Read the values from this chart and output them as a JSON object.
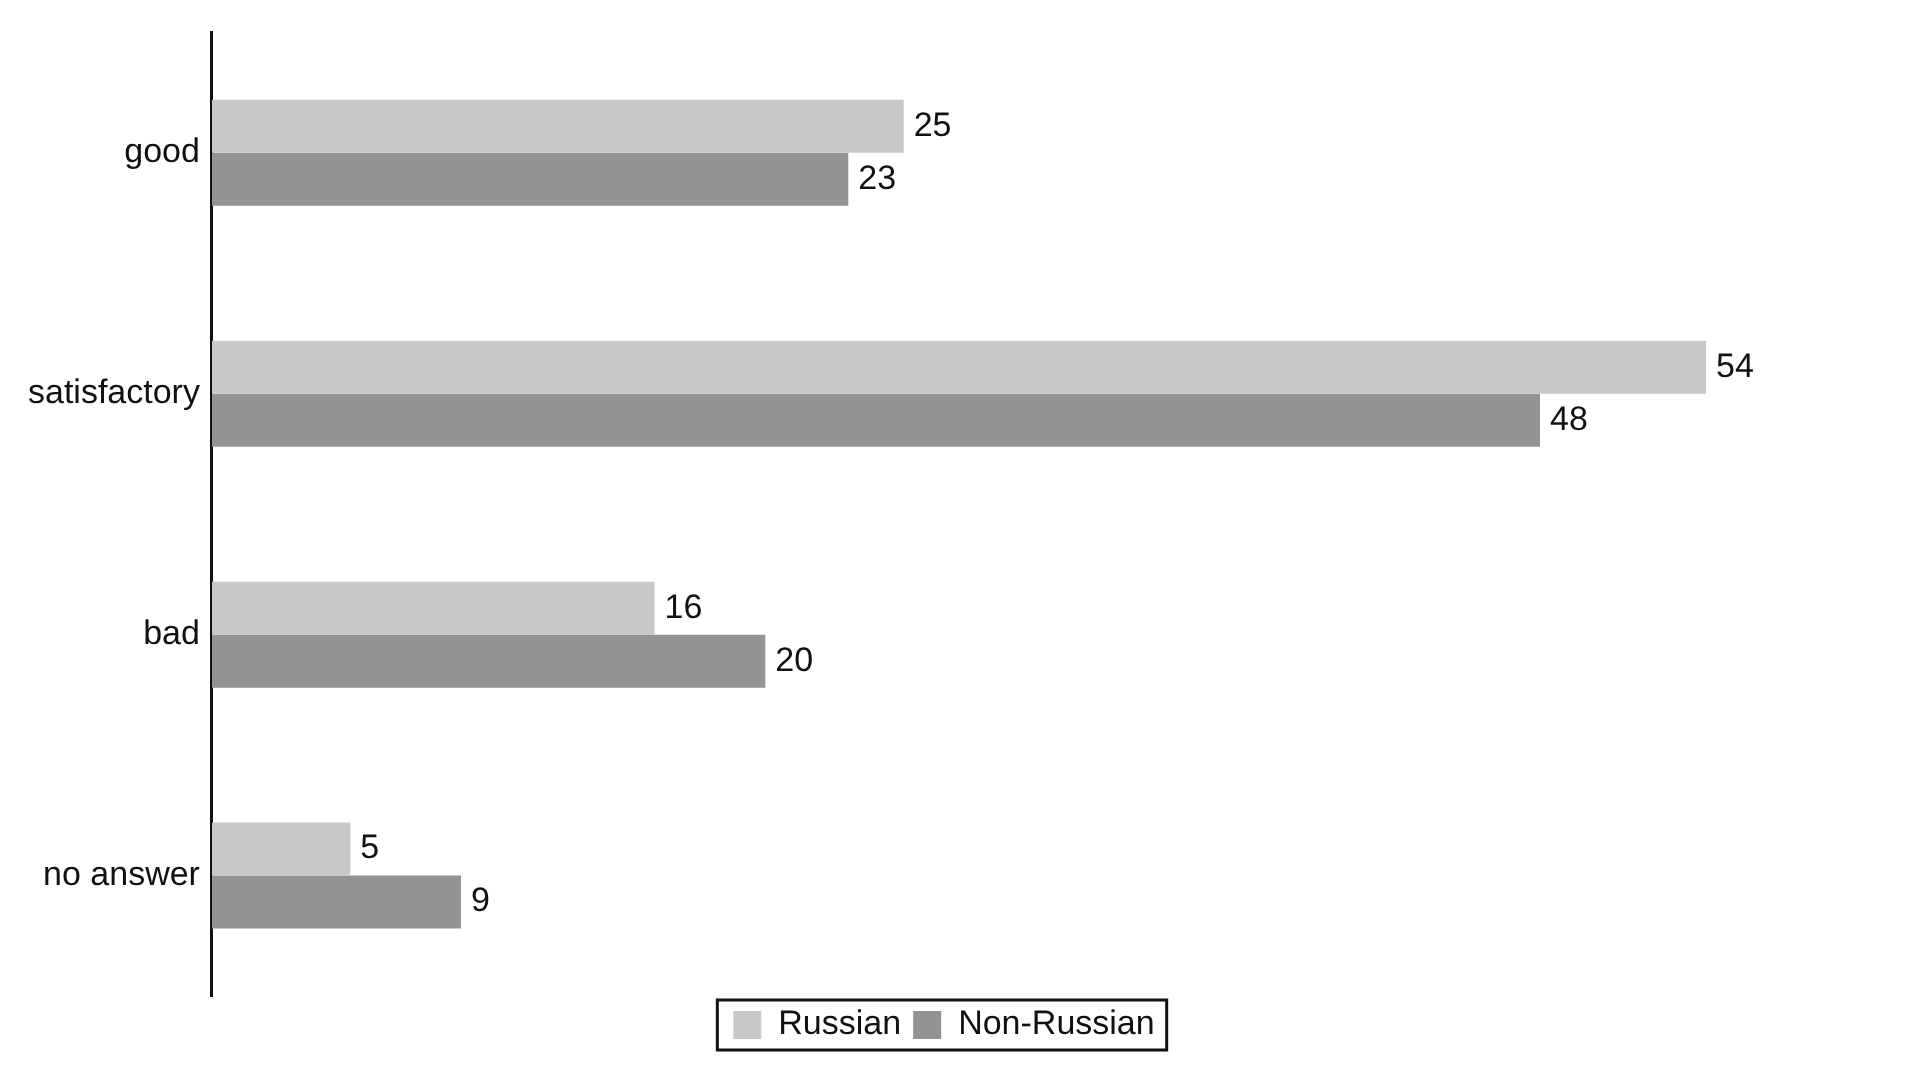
{
  "chart_data": {
    "type": "bar",
    "orientation": "horizontal",
    "categories": [
      "good",
      "satisfactory",
      "bad",
      "no answer"
    ],
    "series": [
      {
        "name": "Russian",
        "color": "#c8c8c8",
        "values": [
          25,
          54,
          16,
          5
        ]
      },
      {
        "name": "Non-Russian",
        "color": "#939393",
        "values": [
          23,
          48,
          20,
          9
        ]
      }
    ],
    "tick_labels": "y",
    "grid": false,
    "legend": "bottom",
    "data_labels": true
  }
}
